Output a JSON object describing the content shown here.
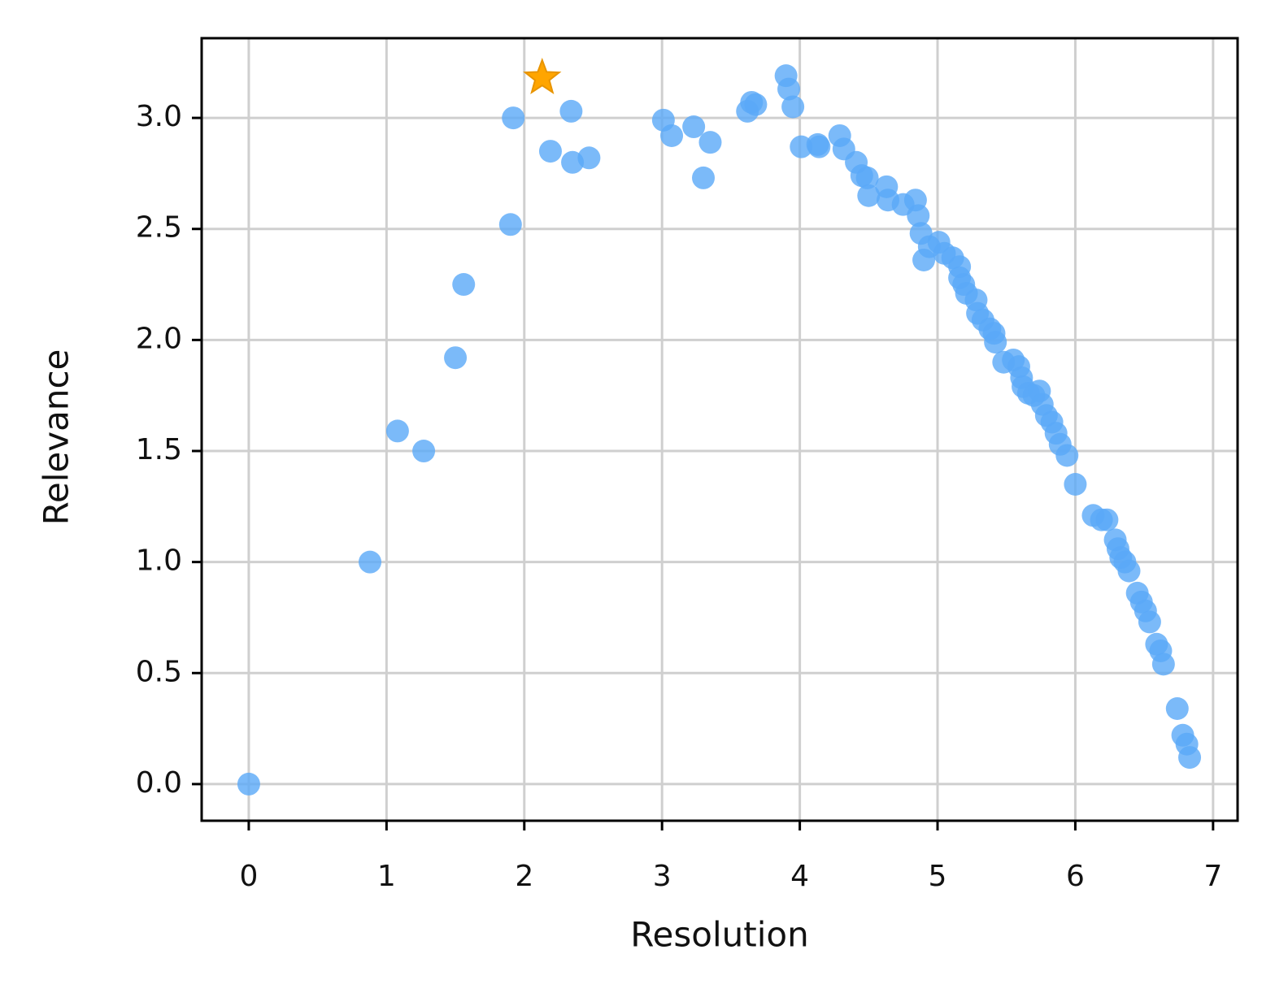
{
  "chart_data": {
    "type": "scatter",
    "xlabel": "Resolution",
    "ylabel": "Relevance",
    "xlim": [
      -0.342,
      7.178
    ],
    "ylim": [
      -0.165,
      3.359
    ],
    "xticks": [
      0,
      1,
      2,
      3,
      4,
      5,
      6,
      7
    ],
    "yticks": [
      {
        "value": 0,
        "label": "0.0"
      },
      {
        "value": 0.5,
        "label": "0.5"
      },
      {
        "value": 1,
        "label": "1.0"
      },
      {
        "value": 1.5,
        "label": "1.5"
      },
      {
        "value": 2,
        "label": "2.0"
      },
      {
        "value": 2.5,
        "label": "2.5"
      },
      {
        "value": 3,
        "label": "3.0"
      }
    ],
    "grid": true,
    "series": [
      {
        "color": "#5aa9f8",
        "marker": "circle",
        "x": [
          0,
          0.88,
          1.08,
          1.27,
          1.5,
          1.56,
          1.9,
          1.92,
          2.19,
          2.34,
          2.35,
          2.47,
          3.01,
          3.07,
          3.23,
          3.3,
          3.35,
          3.62,
          3.65,
          3.68,
          3.9,
          3.92,
          3.95,
          4.01,
          4.13,
          4.14,
          4.29,
          4.32,
          4.41,
          4.45,
          4.49,
          4.5,
          4.63,
          4.64,
          4.75,
          4.84,
          4.86,
          4.88,
          4.9,
          4.94,
          5.01,
          5.05,
          5.11,
          5.16,
          5.16,
          5.19,
          5.21,
          5.28,
          5.29,
          5.33,
          5.38,
          5.41,
          5.42,
          5.48,
          5.55,
          5.59,
          5.61,
          5.62,
          5.66,
          5.7,
          5.74,
          5.76,
          5.79,
          5.83,
          5.86,
          5.89,
          5.94,
          6.0,
          6.13,
          6.19,
          6.23,
          6.29,
          6.31,
          6.33,
          6.36,
          6.39,
          6.45,
          6.48,
          6.51,
          6.54,
          6.59,
          6.62,
          6.64,
          6.74,
          6.78,
          6.81,
          6.83
        ],
        "values": [
          0,
          1.0,
          1.59,
          1.5,
          1.92,
          2.25,
          2.52,
          3.0,
          2.85,
          3.03,
          2.8,
          2.82,
          2.99,
          2.92,
          2.96,
          2.73,
          2.89,
          3.03,
          3.07,
          3.06,
          3.19,
          3.13,
          3.05,
          2.87,
          2.88,
          2.87,
          2.92,
          2.86,
          2.8,
          2.74,
          2.73,
          2.65,
          2.69,
          2.63,
          2.61,
          2.63,
          2.56,
          2.48,
          2.36,
          2.42,
          2.44,
          2.39,
          2.37,
          2.33,
          2.28,
          2.25,
          2.21,
          2.18,
          2.12,
          2.09,
          2.05,
          2.03,
          1.99,
          1.9,
          1.91,
          1.88,
          1.83,
          1.79,
          1.76,
          1.75,
          1.77,
          1.71,
          1.66,
          1.63,
          1.58,
          1.53,
          1.48,
          1.35,
          1.21,
          1.19,
          1.19,
          1.1,
          1.06,
          1.02,
          1.0,
          0.96,
          0.86,
          0.82,
          0.78,
          0.73,
          0.63,
          0.6,
          0.54,
          0.34,
          0.22,
          0.18,
          0.12
        ]
      },
      {
        "color": "#ffa500",
        "marker": "star",
        "x": [
          2.13
        ],
        "values": [
          3.18
        ]
      }
    ]
  }
}
